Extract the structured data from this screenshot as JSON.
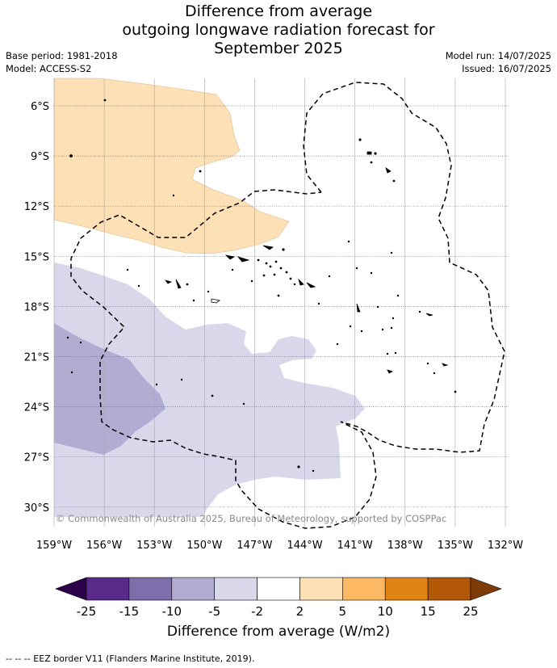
{
  "title": {
    "line1": "Difference from average",
    "line2": "outgoing longwave radiation forecast for",
    "line3": "September 2025"
  },
  "meta": {
    "base_period": "Base period: 1981-2018",
    "model": "Model: ACCESS-S2",
    "model_run": "Model run: 14/07/2025",
    "issued": "Issued: 16/07/2025"
  },
  "map": {
    "copyright": "© Commonwealth of Australia 2025, Bureau of Meteorology, supported by COSPPac",
    "lon_ticks": [
      "159°W",
      "156°W",
      "153°W",
      "150°W",
      "147°W",
      "144°W",
      "141°W",
      "138°W",
      "135°W",
      "132°W"
    ],
    "lat_ticks": [
      "6°S",
      "9°S",
      "12°S",
      "15°S",
      "18°S",
      "21°S",
      "24°S",
      "27°S",
      "30°S"
    ],
    "lon_range": [
      -159,
      -132
    ],
    "lat_range": [
      -5,
      -31.5
    ]
  },
  "colorbar": {
    "label": "Difference from average (W/m2)",
    "ticks": [
      "-25",
      "-15",
      "-10",
      "-5",
      "-2",
      "2",
      "5",
      "10",
      "15",
      "25"
    ],
    "colors": [
      "#5a2a8a",
      "#7e6eac",
      "#b2acd2",
      "#d8d8ea",
      "#ffffff",
      "#fde0b6",
      "#fdb863",
      "#e08214",
      "#b35806"
    ],
    "low_extend_color": "#2d004b",
    "high_extend_color": "#7f3b08"
  },
  "footnote": "-- -- -- EEZ border V11 (Flanders Marine Institute, 2019)."
}
